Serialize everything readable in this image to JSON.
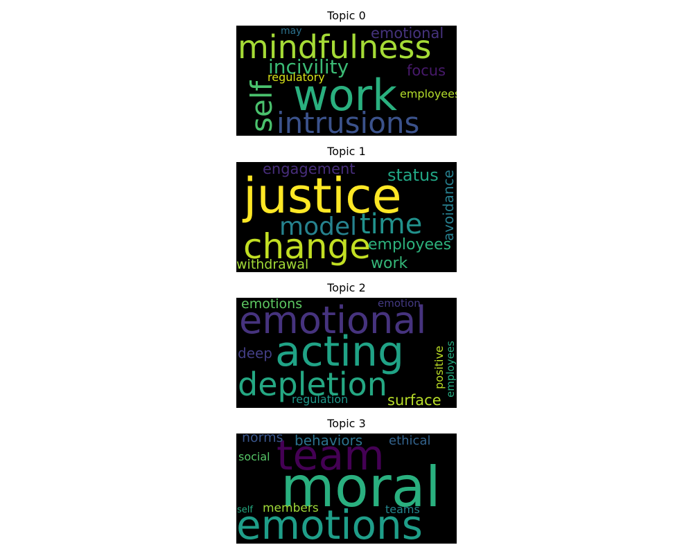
{
  "panels": [
    {
      "title": "Topic 0",
      "words": [
        {
          "text": "mindfulness",
          "color": "#a5db36"
        },
        {
          "text": "work",
          "color": "#2ab07f"
        },
        {
          "text": "intrusions",
          "color": "#3b528b"
        },
        {
          "text": "self",
          "color": "#4ac16d"
        },
        {
          "text": "incivility",
          "color": "#3bbb75"
        },
        {
          "text": "emotional",
          "color": "#46337e"
        },
        {
          "text": "focus",
          "color": "#481a6c"
        },
        {
          "text": "regulatory",
          "color": "#d8e219"
        },
        {
          "text": "employees",
          "color": "#b5de2b"
        },
        {
          "text": "may",
          "color": "#2c728e"
        }
      ]
    },
    {
      "title": "Topic 1",
      "words": [
        {
          "text": "justice",
          "color": "#fde725"
        },
        {
          "text": "change",
          "color": "#c2df23"
        },
        {
          "text": "time",
          "color": "#21918c"
        },
        {
          "text": "model",
          "color": "#26828e"
        },
        {
          "text": "engagement",
          "color": "#472d7b"
        },
        {
          "text": "status",
          "color": "#22a785"
        },
        {
          "text": "avoidance",
          "color": "#277f8e"
        },
        {
          "text": "employees",
          "color": "#2db27d"
        },
        {
          "text": "work",
          "color": "#35b779"
        },
        {
          "text": "withdrawal",
          "color": "#a2da37"
        }
      ]
    },
    {
      "title": "Topic 2",
      "words": [
        {
          "text": "emotional",
          "color": "#46337e"
        },
        {
          "text": "acting",
          "color": "#20a386"
        },
        {
          "text": "depletion",
          "color": "#25a883"
        },
        {
          "text": "emotions",
          "color": "#5ec962"
        },
        {
          "text": "emotion",
          "color": "#443a83"
        },
        {
          "text": "deep",
          "color": "#433e85"
        },
        {
          "text": "positive",
          "color": "#bddf26"
        },
        {
          "text": "employees",
          "color": "#27ad81"
        },
        {
          "text": "regulation",
          "color": "#1f988b"
        },
        {
          "text": "surface",
          "color": "#b8de29"
        }
      ]
    },
    {
      "title": "Topic 3",
      "words": [
        {
          "text": "team",
          "color": "#440154"
        },
        {
          "text": "moral",
          "color": "#2ab07f"
        },
        {
          "text": "emotions",
          "color": "#1f9e89"
        },
        {
          "text": "norms",
          "color": "#39558c"
        },
        {
          "text": "behaviors",
          "color": "#2c728e"
        },
        {
          "text": "ethical",
          "color": "#33638d"
        },
        {
          "text": "social",
          "color": "#56c667"
        },
        {
          "text": "members",
          "color": "#a0da39"
        },
        {
          "text": "teams",
          "color": "#24868e"
        },
        {
          "text": "self",
          "color": "#25ab82"
        }
      ]
    }
  ]
}
